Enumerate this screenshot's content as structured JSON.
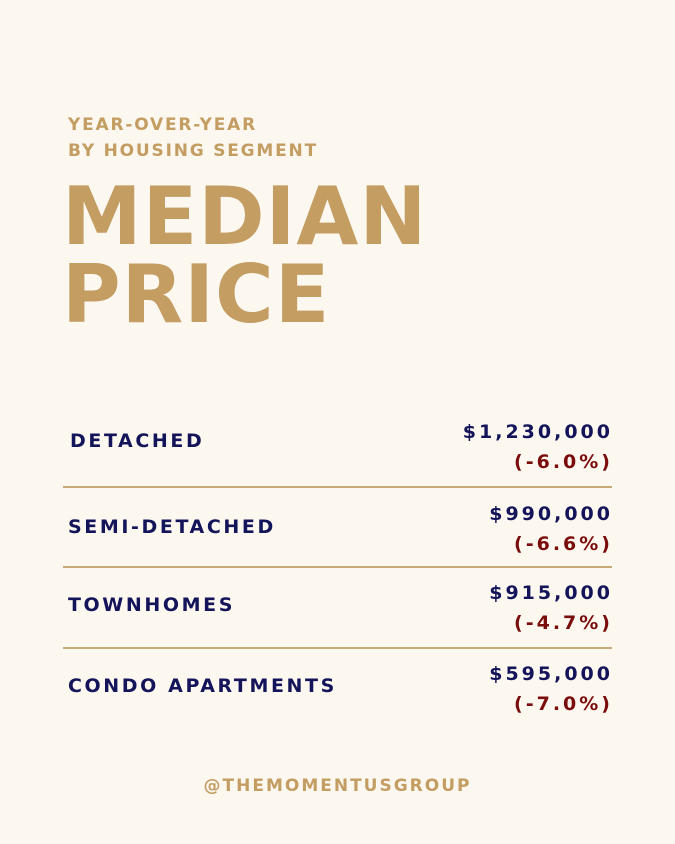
{
  "header": {
    "eyebrow_line1": "YEAR-OVER-YEAR",
    "eyebrow_line2": "BY HOUSING SEGMENT",
    "title_line1": "MEDIAN",
    "title_line2": "PRICE"
  },
  "segments": [
    {
      "label": "DETACHED",
      "price": "$1,230,000",
      "change": "(-6.0%)"
    },
    {
      "label": "SEMI-DETACHED",
      "price": "$990,000",
      "change": "(-6.6%)"
    },
    {
      "label": "TOWNHOMES",
      "price": "$915,000",
      "change": "(-4.7%)"
    },
    {
      "label": "CONDO APARTMENTS",
      "price": "$595,000",
      "change": "(-7.0%)"
    }
  ],
  "footer": {
    "handle": "@THEMOMENTUSGROUP"
  },
  "colors": {
    "background": "#fcf7ef",
    "gold": "#c39d62",
    "navy": "#13145a",
    "maroon": "#7a0d0b"
  }
}
